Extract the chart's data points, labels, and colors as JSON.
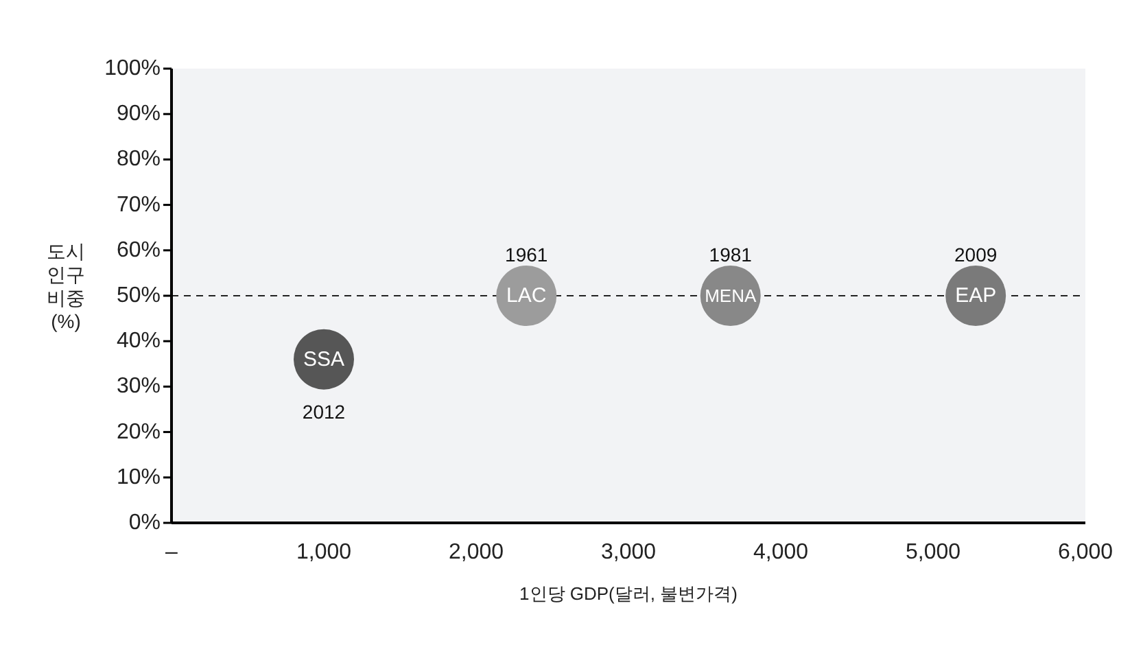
{
  "chart_data": {
    "type": "scatter",
    "xlabel": "1인당 GDP(달러, 불변가격)",
    "ylabel": "도시 인구 비중 (%)",
    "x": [
      1000,
      2330,
      3670,
      5280
    ],
    "values": [
      36,
      50,
      50,
      50
    ],
    "colors": [
      "#565656",
      "#9c9c9c",
      "#888888",
      "#7a7a7a"
    ],
    "xlim": [
      0,
      6000
    ],
    "ylim": [
      0,
      100
    ],
    "xticks": [
      {
        "value": 0,
        "label": "–"
      },
      {
        "value": 1000,
        "label": "1,000"
      },
      {
        "value": 2000,
        "label": "2,000"
      },
      {
        "value": 3000,
        "label": "3,000"
      },
      {
        "value": 4000,
        "label": "4,000"
      },
      {
        "value": 5000,
        "label": "5,000"
      },
      {
        "value": 6000,
        "label": "6,000"
      }
    ],
    "yticks": [
      {
        "value": 0,
        "label": "0%"
      },
      {
        "value": 10,
        "label": "10%"
      },
      {
        "value": 20,
        "label": "20%"
      },
      {
        "value": 30,
        "label": "30%"
      },
      {
        "value": 40,
        "label": "40%"
      },
      {
        "value": 50,
        "label": "50%"
      },
      {
        "value": 60,
        "label": "60%"
      },
      {
        "value": 70,
        "label": "70%"
      },
      {
        "value": 80,
        "label": "80%"
      },
      {
        "value": 90,
        "label": "90%"
      },
      {
        "value": 100,
        "label": "100%"
      }
    ],
    "ref_lines": [
      {
        "axis": "y",
        "value": 50,
        "line_style": "dashed",
        "color": "#222222"
      }
    ],
    "annotations": [
      {
        "text": "SSA",
        "x": 1000,
        "y": 36
      },
      {
        "text": "LAC",
        "x": 2330,
        "y": 50
      },
      {
        "text": "MENA",
        "x": 3670,
        "y": 50
      },
      {
        "text": "EAP",
        "x": 5280,
        "y": 50
      },
      {
        "text": "2012",
        "x": 1000,
        "y": 36
      },
      {
        "text": "1961",
        "x": 2330,
        "y": 50
      },
      {
        "text": "1981",
        "x": 3670,
        "y": 50
      },
      {
        "text": "2009",
        "x": 5280,
        "y": 50
      }
    ],
    "marker": "circle"
  }
}
